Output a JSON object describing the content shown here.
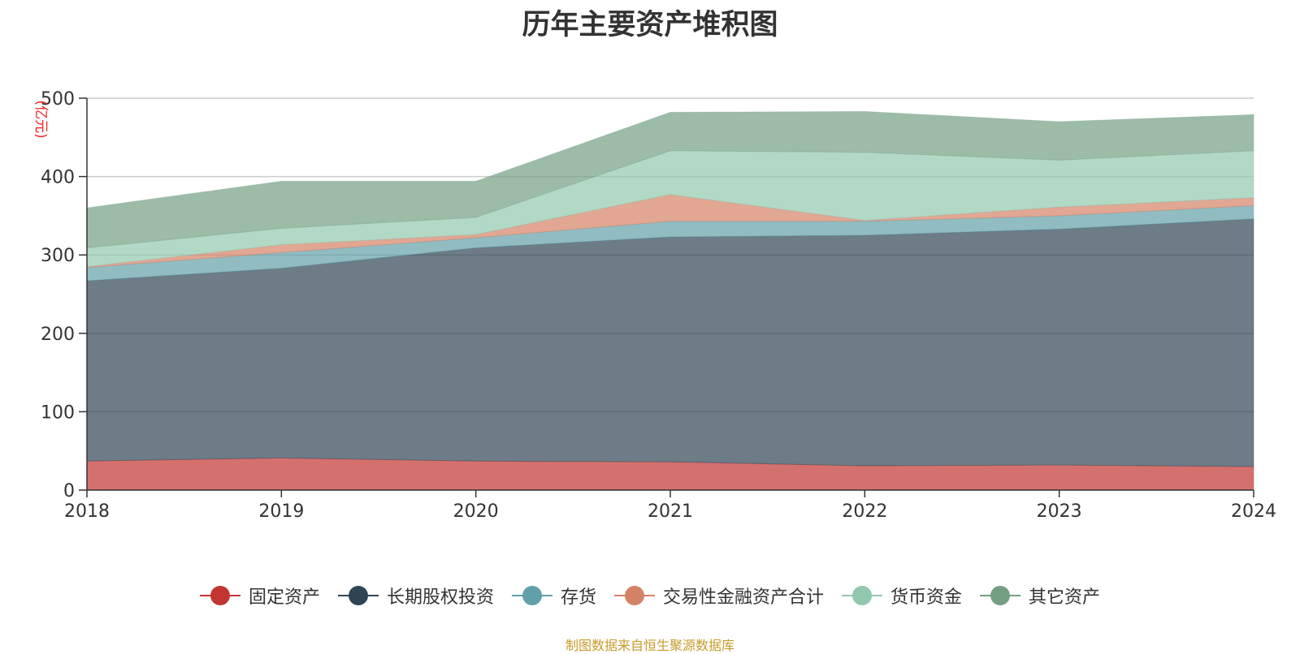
{
  "chart_data": {
    "type": "area",
    "stacked": true,
    "title": "历年主要资产堆积图",
    "unit": "(亿元)",
    "x": [
      "2018",
      "2019",
      "2020",
      "2021",
      "2022",
      "2023",
      "2024"
    ],
    "ylim": [
      0,
      500
    ],
    "yticks": [
      0,
      100,
      200,
      300,
      400,
      500
    ],
    "grid": true,
    "legend_position": "bottom",
    "series": [
      {
        "name": "固定资产",
        "color": "#c23531",
        "values": [
          37,
          41,
          37,
          36,
          31,
          32,
          30
        ]
      },
      {
        "name": "长期股权投资",
        "color": "#2f4554",
        "values": [
          230,
          242,
          272,
          287,
          294,
          301,
          316
        ]
      },
      {
        "name": "存货",
        "color": "#61a0a8",
        "values": [
          17,
          20,
          13,
          20,
          18,
          17,
          17
        ]
      },
      {
        "name": "交易性金融资产合计",
        "color": "#d48265",
        "values": [
          1,
          10,
          4,
          34,
          1,
          11,
          10
        ]
      },
      {
        "name": "货币资金",
        "color": "#91c7ae",
        "values": [
          24,
          21,
          22,
          56,
          87,
          60,
          60
        ]
      },
      {
        "name": "其它资产",
        "color": "#749f83",
        "values": [
          51,
          60,
          46,
          49,
          52,
          49,
          46
        ]
      }
    ]
  },
  "source_note": "制图数据来自恒生聚源数据库"
}
